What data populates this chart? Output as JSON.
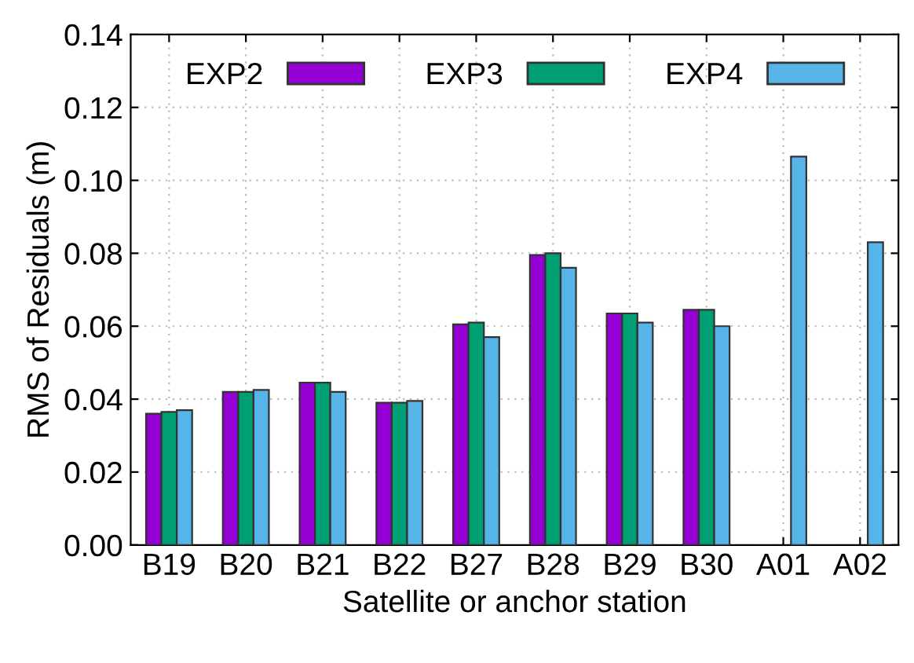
{
  "chart_data": {
    "type": "bar",
    "xlabel": "Satellite or anchor station",
    "ylabel": "RMS of Residuals (m)",
    "categories": [
      "B19",
      "B20",
      "B21",
      "B22",
      "B27",
      "B28",
      "B29",
      "B30",
      "A01",
      "A02"
    ],
    "series": [
      {
        "name": "EXP2",
        "color": "#9400d3",
        "values": [
          0.036,
          0.042,
          0.0445,
          0.039,
          0.0605,
          0.0795,
          0.0635,
          0.0645,
          null,
          null
        ]
      },
      {
        "name": "EXP3",
        "color": "#009e73",
        "values": [
          0.0365,
          0.042,
          0.0445,
          0.039,
          0.061,
          0.08,
          0.0635,
          0.0645,
          null,
          null
        ]
      },
      {
        "name": "EXP4",
        "color": "#56b4e9",
        "values": [
          0.037,
          0.0425,
          0.042,
          0.0395,
          0.057,
          0.076,
          0.061,
          0.06,
          0.1065,
          0.083
        ]
      }
    ],
    "ylim": [
      0,
      0.14
    ],
    "yticks": [
      {
        "value": 0,
        "label": "0.00"
      },
      {
        "value": 0.02,
        "label": "0.02"
      },
      {
        "value": 0.04,
        "label": "0.04"
      },
      {
        "value": 0.06,
        "label": "0.06"
      },
      {
        "value": 0.08,
        "label": "0.08"
      },
      {
        "value": 0.1,
        "label": "0.10"
      },
      {
        "value": 0.12,
        "label": "0.12"
      },
      {
        "value": 0.14,
        "label": "0.14"
      }
    ],
    "grid": true,
    "legend": "top"
  }
}
